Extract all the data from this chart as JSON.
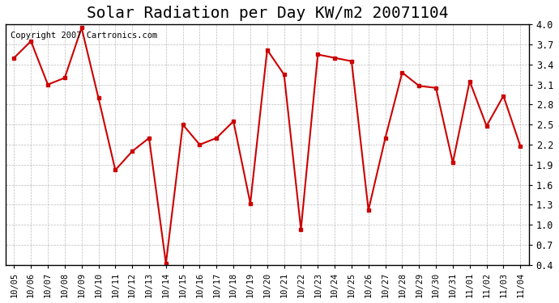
{
  "title": "Solar Radiation per Day KW/m2 20071104",
  "copyright_text": "Copyright 2007 Cartronics.com",
  "x_labels": [
    "10/05",
    "10/06",
    "10/07",
    "10/08",
    "10/09",
    "10/10",
    "10/11",
    "10/12",
    "10/13",
    "10/14",
    "10/15",
    "10/16",
    "10/17",
    "10/18",
    "10/19",
    "10/20",
    "10/21",
    "10/22",
    "10/23",
    "10/24",
    "10/25",
    "10/26",
    "10/27",
    "10/28",
    "10/29",
    "10/30",
    "10/31",
    "11/01",
    "11/02",
    "11/03",
    "11/04"
  ],
  "y_values": [
    3.5,
    3.75,
    3.1,
    3.2,
    3.95,
    2.9,
    1.82,
    2.1,
    2.3,
    0.42,
    2.5,
    2.2,
    2.3,
    2.55,
    1.32,
    3.62,
    3.25,
    0.93,
    3.55,
    3.5,
    3.45,
    1.22,
    2.3,
    3.28,
    3.08,
    3.05,
    1.93,
    3.15,
    2.48,
    2.93,
    2.18
  ],
  "line_color": "#cc0000",
  "marker_color": "#cc0000",
  "bg_color": "#ffffff",
  "grid_color": "#aaaaaa",
  "ylim": [
    0.4,
    4.0
  ],
  "yticks": [
    0.4,
    0.7,
    1.0,
    1.3,
    1.6,
    1.9,
    2.2,
    2.5,
    2.8,
    3.1,
    3.4,
    3.7,
    4.0
  ],
  "title_fontsize": 14,
  "copyright_fontsize": 7.5
}
